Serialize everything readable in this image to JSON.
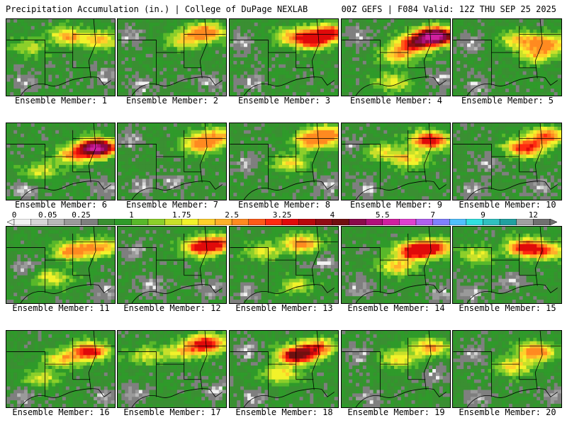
{
  "header": {
    "left": "Precipitation Accumulation (in.) | College of DuPage NEXLAB",
    "right": "00Z GEFS | F084 Valid: 12Z THU SEP 25 2025"
  },
  "panels": [
    {
      "label": "Ensemble Member: 1",
      "max": 2.5,
      "centers": [
        [
          0.55,
          0.2,
          1.8
        ],
        [
          0.85,
          0.25,
          1.6
        ],
        [
          0.2,
          0.35,
          0.9
        ]
      ],
      "dry": [
        [
          0.15,
          0.8
        ],
        [
          0.9,
          0.75
        ]
      ]
    },
    {
      "label": "Ensemble Member: 2",
      "max": 2.5,
      "centers": [
        [
          0.8,
          0.15,
          2.4
        ],
        [
          0.6,
          0.25,
          1.3
        ]
      ],
      "dry": [
        [
          0.1,
          0.2
        ],
        [
          0.2,
          0.85
        ],
        [
          0.85,
          0.8
        ]
      ]
    },
    {
      "label": "Ensemble Member: 3",
      "max": 3.25,
      "centers": [
        [
          0.75,
          0.25,
          3.0
        ],
        [
          0.9,
          0.15,
          2.5
        ],
        [
          0.55,
          0.2,
          1.4
        ]
      ],
      "dry": [
        [
          0.2,
          0.8
        ],
        [
          0.1,
          0.3
        ]
      ]
    },
    {
      "label": "Ensemble Member: 4",
      "max": 5.5,
      "centers": [
        [
          0.85,
          0.2,
          5.5
        ],
        [
          0.65,
          0.3,
          2.8
        ],
        [
          0.5,
          0.45,
          1.5
        ],
        [
          0.45,
          0.8,
          1.2
        ]
      ],
      "dry": [
        [
          0.15,
          0.2
        ],
        [
          0.9,
          0.75
        ]
      ]
    },
    {
      "label": "Ensemble Member: 5",
      "max": 2.5,
      "centers": [
        [
          0.85,
          0.3,
          2.2
        ],
        [
          0.6,
          0.25,
          1.5
        ],
        [
          0.75,
          0.45,
          1.4
        ]
      ],
      "dry": [
        [
          0.15,
          0.3
        ],
        [
          0.2,
          0.85
        ]
      ]
    },
    {
      "label": "Ensemble Member: 6",
      "max": 5.5,
      "centers": [
        [
          0.82,
          0.3,
          5.2
        ],
        [
          0.6,
          0.4,
          1.8
        ],
        [
          0.3,
          0.6,
          1.0
        ]
      ],
      "dry": [
        [
          0.15,
          0.85
        ],
        [
          0.9,
          0.85
        ]
      ]
    },
    {
      "label": "Ensemble Member: 7",
      "max": 2.5,
      "centers": [
        [
          0.75,
          0.25,
          2.1
        ],
        [
          0.9,
          0.15,
          1.6
        ]
      ],
      "dry": [
        [
          0.2,
          0.8
        ],
        [
          0.5,
          0.75
        ],
        [
          0.1,
          0.2
        ]
      ]
    },
    {
      "label": "Ensemble Member: 8",
      "max": 2.5,
      "centers": [
        [
          0.75,
          0.2,
          2.3
        ],
        [
          0.9,
          0.12,
          2.0
        ],
        [
          0.55,
          0.5,
          1.3
        ]
      ],
      "dry": [
        [
          0.15,
          0.5
        ],
        [
          0.9,
          0.8
        ]
      ]
    },
    {
      "label": "Ensemble Member: 9",
      "max": 3.25,
      "centers": [
        [
          0.8,
          0.2,
          3.1
        ],
        [
          0.6,
          0.45,
          1.5
        ],
        [
          0.35,
          0.35,
          1.1
        ]
      ],
      "dry": [
        [
          0.1,
          0.25
        ],
        [
          0.2,
          0.85
        ]
      ]
    },
    {
      "label": "Ensemble Member: 10",
      "max": 3.25,
      "centers": [
        [
          0.65,
          0.3,
          2.8
        ],
        [
          0.85,
          0.15,
          2.2
        ]
      ],
      "dry": [
        [
          0.3,
          0.5
        ],
        [
          0.15,
          0.85
        ],
        [
          0.8,
          0.8
        ]
      ]
    },
    {
      "label": "Ensemble Member: 11",
      "max": 2.5,
      "centers": [
        [
          0.6,
          0.3,
          2.3
        ],
        [
          0.85,
          0.25,
          1.8
        ],
        [
          0.4,
          0.65,
          1.2
        ]
      ],
      "dry": [
        [
          0.15,
          0.5
        ],
        [
          0.9,
          0.8
        ]
      ]
    },
    {
      "label": "Ensemble Member: 12",
      "max": 3.25,
      "centers": [
        [
          0.75,
          0.25,
          2.6
        ],
        [
          0.9,
          0.2,
          2.2
        ]
      ],
      "dry": [
        [
          0.15,
          0.3
        ],
        [
          0.3,
          0.75
        ],
        [
          0.85,
          0.8
        ]
      ]
    },
    {
      "label": "Ensemble Member: 13",
      "max": 2.5,
      "centers": [
        [
          0.65,
          0.2,
          2.2
        ],
        [
          0.3,
          0.3,
          1.2
        ],
        [
          0.6,
          0.75,
          1.0
        ]
      ],
      "dry": [
        [
          0.15,
          0.85
        ],
        [
          0.85,
          0.45
        ]
      ]
    },
    {
      "label": "Ensemble Member: 14",
      "max": 3.25,
      "centers": [
        [
          0.65,
          0.3,
          3.2
        ],
        [
          0.85,
          0.25,
          2.4
        ],
        [
          0.5,
          0.5,
          1.5
        ]
      ],
      "dry": [
        [
          0.15,
          0.8
        ],
        [
          0.9,
          0.85
        ]
      ]
    },
    {
      "label": "Ensemble Member: 15",
      "max": 3.25,
      "centers": [
        [
          0.65,
          0.25,
          2.9
        ],
        [
          0.85,
          0.3,
          1.8
        ],
        [
          0.2,
          0.35,
          1.1
        ]
      ],
      "dry": [
        [
          0.15,
          0.85
        ],
        [
          0.5,
          0.7
        ]
      ]
    },
    {
      "label": "Ensemble Member: 16",
      "max": 3.25,
      "centers": [
        [
          0.75,
          0.25,
          3.0
        ],
        [
          0.5,
          0.35,
          1.5
        ],
        [
          0.3,
          0.6,
          1.1
        ]
      ],
      "dry": [
        [
          0.15,
          0.85
        ],
        [
          0.9,
          0.85
        ]
      ]
    },
    {
      "label": "Ensemble Member: 17",
      "max": 3.25,
      "centers": [
        [
          0.8,
          0.15,
          3.1
        ],
        [
          0.6,
          0.25,
          1.4
        ],
        [
          0.25,
          0.3,
          1.1
        ]
      ],
      "dry": [
        [
          0.15,
          0.8
        ],
        [
          0.9,
          0.75
        ]
      ]
    },
    {
      "label": "Ensemble Member: 18",
      "max": 4,
      "centers": [
        [
          0.6,
          0.3,
          3.8
        ],
        [
          0.8,
          0.2,
          2.3
        ],
        [
          0.45,
          0.55,
          1.4
        ]
      ],
      "dry": [
        [
          0.15,
          0.25
        ],
        [
          0.2,
          0.85
        ]
      ]
    },
    {
      "label": "Ensemble Member: 19",
      "max": 2.5,
      "centers": [
        [
          0.8,
          0.2,
          2.0
        ],
        [
          0.5,
          0.35,
          1.3
        ]
      ],
      "dry": [
        [
          0.15,
          0.3
        ],
        [
          0.85,
          0.55
        ],
        [
          0.25,
          0.85
        ]
      ]
    },
    {
      "label": "Ensemble Member: 20",
      "max": 2.5,
      "centers": [
        [
          0.75,
          0.25,
          2.4
        ],
        [
          0.55,
          0.45,
          1.4
        ]
      ],
      "dry": [
        [
          0.15,
          0.3
        ],
        [
          0.2,
          0.85
        ],
        [
          0.9,
          0.85
        ]
      ]
    }
  ],
  "colorbar": {
    "labels": [
      "0",
      "0.05",
      "0.25",
      "1",
      "1.75",
      "2.5",
      "3.25",
      "4",
      "5.5",
      "7",
      "9",
      "12"
    ],
    "bins": [
      0,
      0.01,
      0.05,
      0.1,
      0.25,
      0.5,
      0.75,
      1,
      1.25,
      1.5,
      1.75,
      2,
      2.25,
      2.5,
      2.75,
      3,
      3.25,
      3.5,
      3.75,
      4,
      4.5,
      5,
      5.5,
      6,
      6.5,
      7,
      7.5,
      8,
      9,
      10,
      11,
      12
    ],
    "colors": [
      "#f2f2f2",
      "#d6d6d6",
      "#b8b8b8",
      "#9a9a9a",
      "#7f7f7f",
      "#3a8f32",
      "#2f9a2a",
      "#58b82a",
      "#8ccf2a",
      "#c8e02a",
      "#f2f22a",
      "#ffd02a",
      "#ffb02a",
      "#ff8a20",
      "#ff5a18",
      "#ff2a10",
      "#e00a0a",
      "#b8080c",
      "#900c14",
      "#701010",
      "#8a0a4a",
      "#b0107a",
      "#d0209f",
      "#e040d0",
      "#b060f0",
      "#8080ff",
      "#50c0ff",
      "#30e0e0",
      "#30c0c0",
      "#20a0a0",
      "#a0a0a0",
      "#707070"
    ]
  }
}
